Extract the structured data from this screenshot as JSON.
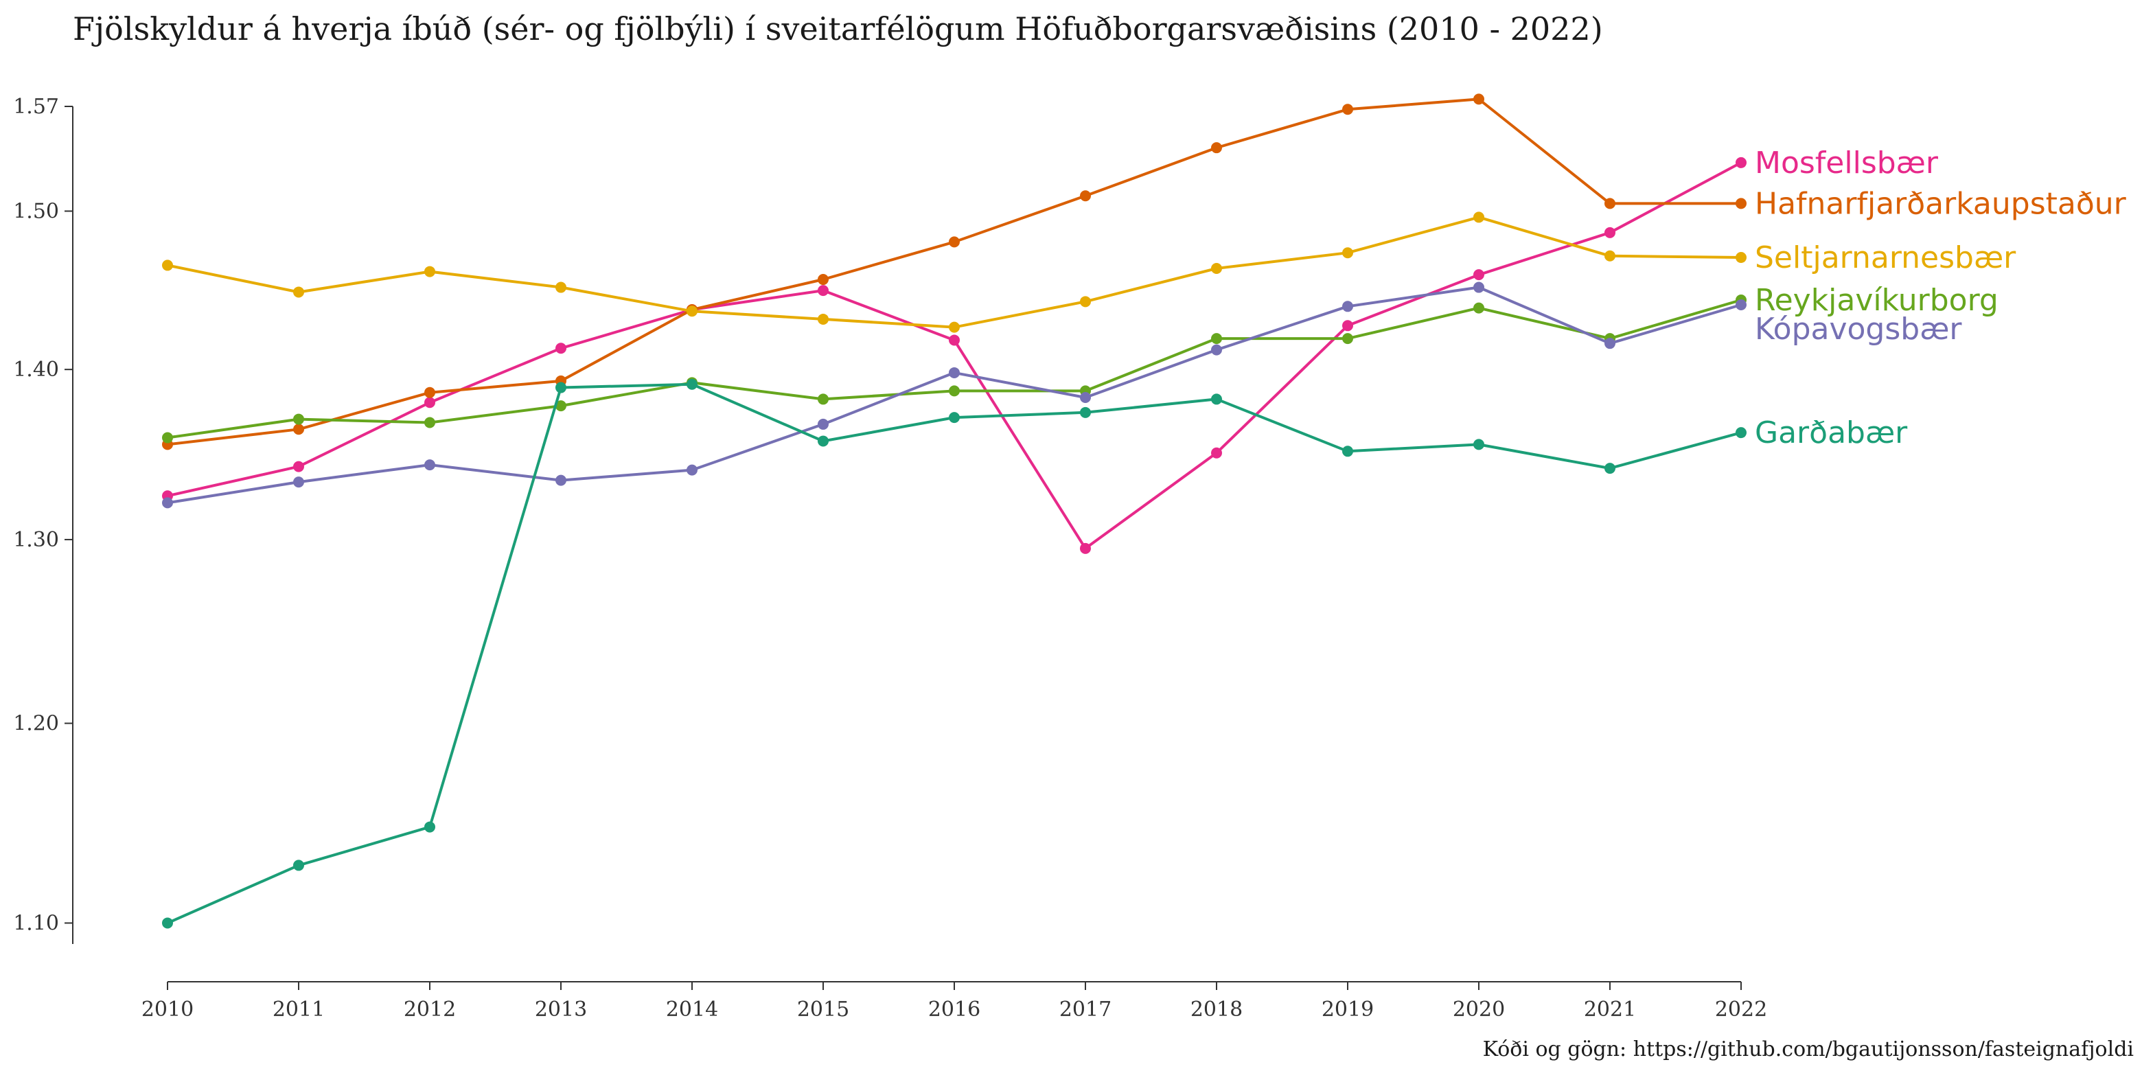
{
  "chart_data": {
    "type": "line",
    "title": "Fjölskyldur á hverja íbúð (sér- og fjölbýli) í sveitarfélögum Höfuðborgarsvæðisins (2010 - 2022)",
    "caption": "Kóði og gögn: https://github.com/bgautijonsson/fasteignafjoldi",
    "xlabel": "",
    "ylabel": "",
    "x": [
      2010,
      2011,
      2012,
      2013,
      2014,
      2015,
      2016,
      2017,
      2018,
      2019,
      2020,
      2021,
      2022
    ],
    "x_tick_labels": [
      "2010",
      "2011",
      "2012",
      "2013",
      "2014",
      "2015",
      "2016",
      "2017",
      "2018",
      "2019",
      "2020",
      "2021",
      "2022"
    ],
    "y_ticks": [
      1.1,
      1.2,
      1.3,
      1.4,
      1.5,
      1.57
    ],
    "y_tick_labels": [
      "1.10",
      "1.20",
      "1.30",
      "1.40",
      "1.50",
      "1.57"
    ],
    "ylim": [
      1.09,
      1.57
    ],
    "y_scale": "log",
    "grid": false,
    "legend": "direct labels at line ends",
    "series": [
      {
        "name": "Mosfellsbær",
        "color": "#E7298A",
        "values": [
          1.325,
          1.342,
          1.38,
          1.413,
          1.437,
          1.449,
          1.418,
          1.295,
          1.35,
          1.427,
          1.459,
          1.486,
          1.532
        ]
      },
      {
        "name": "Hafnarfjarðarkaupstaður",
        "color": "#D95F02",
        "values": [
          1.355,
          1.364,
          1.386,
          1.393,
          1.437,
          1.456,
          1.48,
          1.51,
          1.542,
          1.568,
          1.575,
          1.505,
          1.505
        ]
      },
      {
        "name": "Seltjarnarnesbær",
        "color": "#E6AB02",
        "values": [
          1.465,
          1.448,
          1.461,
          1.451,
          1.436,
          1.431,
          1.426,
          1.442,
          1.463,
          1.473,
          1.496,
          1.471,
          1.47
        ]
      },
      {
        "name": "Reykjavíkurborg",
        "color": "#66A61E",
        "values": [
          1.359,
          1.37,
          1.368,
          1.378,
          1.392,
          1.382,
          1.387,
          1.387,
          1.419,
          1.419,
          1.438,
          1.419,
          1.443
        ]
      },
      {
        "name": "Kópavogsbær",
        "color": "#7570B3",
        "values": [
          1.321,
          1.333,
          1.343,
          1.334,
          1.34,
          1.367,
          1.398,
          1.383,
          1.412,
          1.439,
          1.451,
          1.416,
          1.44
        ]
      },
      {
        "name": "Garðabær",
        "color": "#1B9E77",
        "values": [
          1.1,
          1.128,
          1.147,
          1.389,
          1.391,
          1.357,
          1.371,
          1.374,
          1.382,
          1.351,
          1.355,
          1.341,
          1.362
        ]
      }
    ]
  }
}
